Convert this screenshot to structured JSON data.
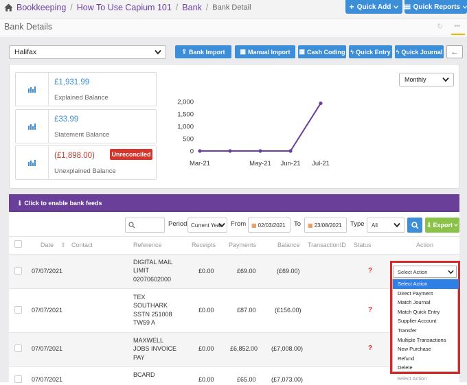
{
  "breadcrumb": {
    "items": [
      "Bookkeeping",
      "How To Use Capium 101",
      "Bank"
    ],
    "current": "Bank Detail"
  },
  "header_buttons": {
    "quick_add": "Quick Add",
    "quick_reports": "Quick Reports"
  },
  "page_title": "Bank Details",
  "bank_select": {
    "value": "Halifax"
  },
  "actions": {
    "bank_import": "Bank Import",
    "manual_import": "Manual Import",
    "cash_coding": "Cash Coding",
    "quick_entry": "Quick Entry",
    "quick_journal": "Quick Journal"
  },
  "balances": [
    {
      "value": "£1,931.99",
      "label": "Explained Balance"
    },
    {
      "value": "£33.99",
      "label": "Statement Balance"
    },
    {
      "value": "(£1,898.00)",
      "label": "Unexplained Balance",
      "badge": "Unreconciled"
    }
  ],
  "chart_period": "Monthly",
  "chart_data": {
    "type": "line",
    "x": [
      "Mar-21",
      "Apr-21",
      "May-21",
      "Jun-21",
      "Jul-21"
    ],
    "x_tick_labels": [
      "Mar-21",
      "May-21",
      "Jun-21",
      "Jul-21"
    ],
    "series": [
      {
        "values": [
          0,
          0,
          0,
          0,
          1931.99
        ]
      }
    ],
    "y_ticks": [
      "2,000",
      "1,500",
      "1,000",
      "500",
      "0"
    ],
    "ylim": [
      0,
      2000
    ],
    "grid": false,
    "color": "#6a3f9a"
  },
  "bank_feeds_banner": "Click to enable bank feeds",
  "filters": {
    "period_label": "Period",
    "period_value": "Current Year",
    "from_label": "From",
    "from_value": "02/03/2021",
    "to_label": "To",
    "to_value": "23/08/2021",
    "type_label": "Type",
    "type_value": "All",
    "export_label": "Export"
  },
  "table": {
    "headers": {
      "date": "Date",
      "contact": "Contact",
      "reference": "Reference",
      "receipts": "Receipts",
      "payments": "Payments",
      "balance": "Balance",
      "transaction_id": "TransactionID",
      "status": "Status",
      "action": "Action"
    },
    "rows": [
      {
        "date": "07/07/2021",
        "ref": [
          "DIGITAL MAIL",
          "LIMIT",
          "02070602000"
        ],
        "receipts": "£0.00",
        "payments": "£69.00",
        "balance": "(£69.00)",
        "status": "?"
      },
      {
        "date": "07/07/2021",
        "ref": [
          "TEX",
          "SOUTHARK",
          "SSTN 251008",
          "TW59 A"
        ],
        "receipts": "£0.00",
        "payments": "£87.00",
        "balance": "(£156.00)",
        "status": "?"
      },
      {
        "date": "07/07/2021",
        "ref": [
          "MAXWELL",
          "JOBS INVOICE",
          "PAY"
        ],
        "receipts": "£0.00",
        "payments": "£6,852.00",
        "balance": "(£7,008.00)",
        "status": "?"
      },
      {
        "date": "07/07/2021",
        "ref": [
          "BCARD"
        ],
        "receipts": "£0.00",
        "payments": "£65.00",
        "balance": "(£7,073.00)",
        "status": ""
      }
    ]
  },
  "action_select": {
    "value": "Select Action"
  },
  "action_options": [
    "Select Action",
    "Direct Payment",
    "Match Journal",
    "Match Quick Entry",
    "Supplier Account",
    "Transfer",
    "Multiple Transactions",
    "New Purchase",
    "Refund",
    "Delete"
  ],
  "colors": {
    "primary": "#3d8ed8",
    "purple": "#6a3f9a",
    "danger": "#d9342b",
    "export": "#8bc34a"
  }
}
